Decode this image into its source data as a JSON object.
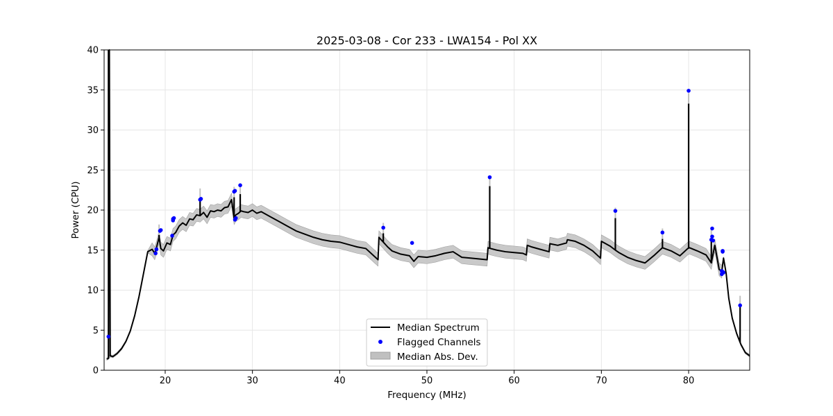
{
  "chart_data": {
    "type": "line",
    "title": "2025-03-08 - Cor 233 - LWA154 - Pol XX",
    "xlabel": "Frequency (MHz)",
    "ylabel": "Power (CPU)",
    "xlim": [
      13.0,
      87.0
    ],
    "ylim": [
      0,
      40
    ],
    "xticks": [
      20,
      30,
      40,
      50,
      60,
      70,
      80
    ],
    "yticks": [
      0,
      5,
      10,
      15,
      20,
      25,
      30,
      35,
      40
    ],
    "grid": true,
    "legend_position": "lower center",
    "legend": [
      "Median Spectrum",
      "Flagged Channels",
      "Median Abs. Dev."
    ],
    "colors": {
      "median": "#000000",
      "flagged": "#0000ff",
      "mad_band": "#c0c0c0",
      "mad_edge": "#a0a0a0",
      "grid": "#e6e6e6"
    },
    "series": [
      {
        "name": "Median Spectrum",
        "kind": "line",
        "x": [
          13.3,
          13.5,
          13.6,
          13.7,
          14.0,
          14.5,
          15.0,
          15.5,
          16.0,
          16.5,
          17.0,
          17.5,
          18.0,
          18.5,
          18.8,
          19.0,
          19.3,
          19.5,
          19.8,
          20.2,
          20.6,
          20.9,
          21.2,
          21.6,
          22.0,
          22.4,
          22.8,
          23.2,
          23.6,
          24.0,
          24.4,
          24.8,
          25.2,
          25.6,
          26.0,
          26.4,
          26.8,
          27.2,
          27.6,
          27.9,
          28.1,
          28.4,
          28.7,
          29.0,
          29.5,
          30.0,
          30.5,
          31.0,
          31.5,
          32.0,
          33.0,
          34.0,
          35.0,
          36.0,
          37.0,
          38.0,
          39.0,
          40.0,
          41.0,
          42.0,
          43.0,
          44.0,
          44.4,
          44.5,
          45.0,
          45.5,
          46.0,
          47.0,
          48.0,
          48.5,
          49.0,
          50.0,
          51.0,
          52.0,
          53.0,
          54.0,
          55.0,
          56.0,
          56.9,
          57.0,
          57.3,
          58.0,
          59.0,
          60.0,
          61.0,
          61.4,
          61.5,
          62.0,
          63.0,
          64.0,
          64.1,
          65.0,
          66.0,
          66.1,
          67.0,
          68.0,
          69.0,
          69.9,
          70.0,
          71.0,
          71.6,
          72.0,
          73.0,
          74.0,
          75.0,
          76.0,
          77.0,
          78.0,
          79.0,
          79.9,
          80.1,
          81.0,
          82.0,
          82.6,
          83.0,
          83.5,
          83.8,
          84.0,
          84.3,
          84.6,
          85.0,
          85.5,
          86.0,
          86.5,
          87.0
        ],
        "y": [
          1.4,
          1.5,
          40.0,
          1.8,
          1.7,
          2.1,
          2.7,
          3.6,
          4.9,
          6.8,
          9.2,
          12.0,
          14.8,
          15.1,
          14.6,
          15.3,
          16.6,
          15.2,
          14.9,
          15.9,
          15.7,
          16.9,
          17.2,
          18.0,
          18.4,
          18.1,
          18.9,
          18.8,
          19.4,
          19.3,
          19.7,
          19.1,
          19.9,
          19.8,
          20.0,
          19.9,
          20.3,
          20.4,
          21.3,
          19.0,
          19.4,
          19.6,
          19.9,
          19.8,
          19.7,
          20.0,
          19.6,
          19.8,
          19.5,
          19.2,
          18.6,
          18.0,
          17.4,
          17.0,
          16.6,
          16.3,
          16.1,
          16.0,
          15.7,
          15.4,
          15.2,
          14.2,
          13.8,
          16.6,
          16.0,
          15.4,
          14.9,
          14.5,
          14.3,
          13.6,
          14.2,
          14.1,
          14.3,
          14.6,
          14.8,
          14.1,
          14.0,
          13.9,
          13.8,
          15.3,
          15.2,
          15.0,
          14.8,
          14.7,
          14.6,
          14.4,
          15.6,
          15.4,
          15.1,
          14.8,
          15.8,
          15.6,
          15.9,
          16.3,
          16.1,
          15.6,
          14.9,
          14.0,
          16.1,
          15.5,
          15.0,
          14.7,
          14.1,
          13.7,
          13.4,
          14.3,
          15.3,
          14.9,
          14.3,
          15.2,
          15.3,
          14.9,
          14.4,
          13.4,
          15.6,
          12.6,
          12.3,
          14.0,
          12.1,
          9.0,
          6.5,
          4.6,
          3.2,
          2.2,
          1.8
        ],
        "spikes": [
          {
            "x": 13.5,
            "y": 40.0
          },
          {
            "x": 19.3,
            "y": 16.9
          },
          {
            "x": 24.0,
            "y": 21.4
          },
          {
            "x": 27.9,
            "y": 21.6
          },
          {
            "x": 28.6,
            "y": 22.0
          },
          {
            "x": 45.0,
            "y": 17.1
          },
          {
            "x": 57.2,
            "y": 23.0
          },
          {
            "x": 71.6,
            "y": 19.0
          },
          {
            "x": 77.0,
            "y": 16.4
          },
          {
            "x": 80.0,
            "y": 33.3
          },
          {
            "x": 82.6,
            "y": 16.3
          },
          {
            "x": 85.9,
            "y": 8.0
          }
        ]
      },
      {
        "name": "Flagged Channels",
        "kind": "scatter",
        "x": [
          13.5,
          18.9,
          19.0,
          19.4,
          19.5,
          20.8,
          20.9,
          20.9,
          21.0,
          24.0,
          24.1,
          27.9,
          28.0,
          28.0,
          28.1,
          28.6,
          45.0,
          48.3,
          57.2,
          71.6,
          77.0,
          80.0,
          82.6,
          82.7,
          82.7,
          82.8,
          83.8,
          83.8,
          83.9,
          83.9,
          83.9,
          84.0,
          85.9
        ],
        "y": [
          4.2,
          14.6,
          15.1,
          17.4,
          17.5,
          16.8,
          18.7,
          18.9,
          19.0,
          21.3,
          21.4,
          22.3,
          22.4,
          18.8,
          19.0,
          23.1,
          17.8,
          15.9,
          24.1,
          19.9,
          17.2,
          34.9,
          16.3,
          17.7,
          16.7,
          16.2,
          12.4,
          12.0,
          14.9,
          14.8,
          12.3,
          12.2,
          8.1
        ]
      },
      {
        "name": "Median Abs. Dev.",
        "kind": "band",
        "half_width": 0.8
      }
    ]
  }
}
